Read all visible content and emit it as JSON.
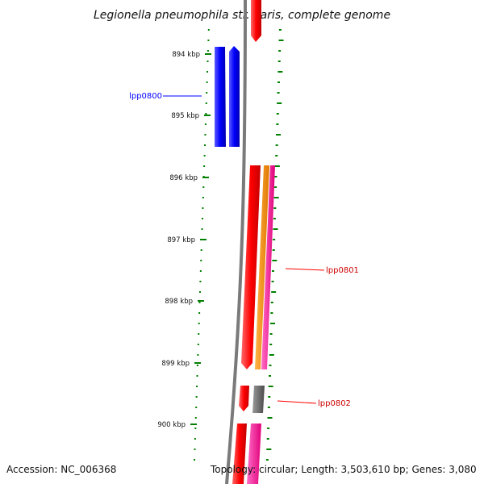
{
  "title": "Legionella pneumophila str. Paris, complete genome",
  "footer": {
    "accession": "Accession: NC_006368",
    "topology": "Topology: circular; Length: 3,503,610 bp; Genes: 3,080"
  },
  "scale": {
    "unit": "kbp",
    "ticks": [
      "894 kbp",
      "895 kbp",
      "896 kbp",
      "897 kbp",
      "898 kbp",
      "899 kbp",
      "900 kbp"
    ]
  },
  "genes": [
    {
      "id": "lpp0800",
      "label": "lpp0800",
      "color": "#0000ff"
    },
    {
      "id": "lpp0801",
      "label": "lpp0801",
      "color": "#ff0000"
    },
    {
      "id": "lpp0802",
      "label": "lpp0802",
      "color": "#ff0000"
    }
  ],
  "feature_colors": {
    "cds_forward": "#ff0000",
    "cds_reverse": "#0000ff",
    "rna": "#ff8c00",
    "misc": "#ff1493",
    "other": "#606060",
    "backbone": "#808080",
    "gc_skew": "#008000"
  }
}
